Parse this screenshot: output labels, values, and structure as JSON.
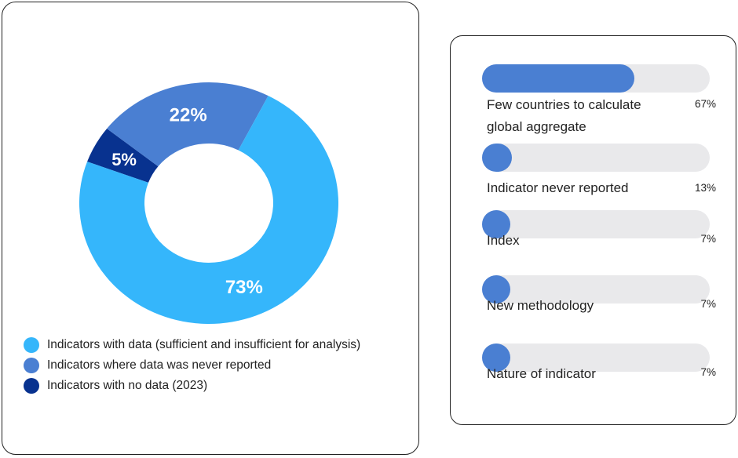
{
  "chart_data": [
    {
      "type": "pie",
      "variant": "donut",
      "slices": [
        {
          "label": "Indicators with data (sufficient and insufficient for analysis)",
          "value": 73,
          "display": "73%",
          "color": "#35b6fb"
        },
        {
          "label": "Indicators where data was never reported",
          "value": 22,
          "display": "22%",
          "color": "#4a7fd2"
        },
        {
          "label": "Indicators with no data (2023)",
          "value": 5,
          "display": "5%",
          "color": "#08328f"
        }
      ],
      "legend_position": "bottom-left"
    },
    {
      "type": "bar",
      "orientation": "horizontal",
      "bar_color": "#4a7fd2",
      "track_color": "#e9e9eb",
      "categories": [
        "Few countries to calculate global aggregate",
        "Indicator never reported",
        "Index",
        "New methodology",
        "Nature of indicator"
      ],
      "values": [
        67,
        13,
        7,
        7,
        7
      ],
      "value_labels": [
        "67%",
        "13%",
        "7%",
        "7%",
        "7%"
      ],
      "xlim": [
        0,
        100
      ]
    }
  ]
}
